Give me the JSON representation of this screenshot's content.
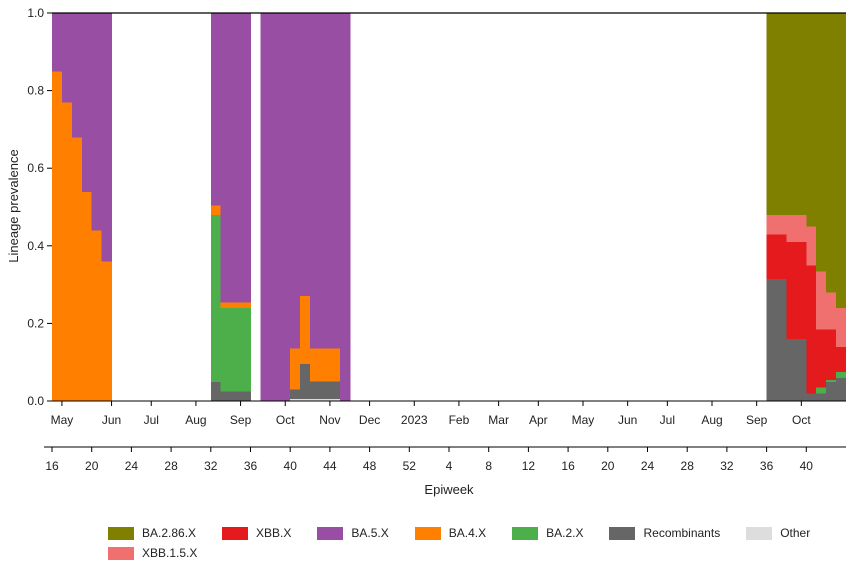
{
  "chart_data": {
    "type": "area",
    "title": "",
    "ylabel": "Lineage prevalence",
    "xlabel": "Epiweek",
    "ylim": [
      0,
      1
    ],
    "yticks": [
      "0.0",
      "0.2",
      "0.4",
      "0.6",
      "0.8",
      "1.0"
    ],
    "x_range_epiweek_index": [
      0,
      80
    ],
    "month_ticks": [
      {
        "label": "May",
        "x": 1
      },
      {
        "label": "Jun",
        "x": 6
      },
      {
        "label": "Jul",
        "x": 10
      },
      {
        "label": "Aug",
        "x": 14.5
      },
      {
        "label": "Sep",
        "x": 19
      },
      {
        "label": "Oct",
        "x": 23.5
      },
      {
        "label": "Nov",
        "x": 28
      },
      {
        "label": "Dec",
        "x": 32
      },
      {
        "label": "2023",
        "x": 36.5
      },
      {
        "label": "Feb",
        "x": 41
      },
      {
        "label": "Mar",
        "x": 45
      },
      {
        "label": "Apr",
        "x": 49
      },
      {
        "label": "May",
        "x": 53.5
      },
      {
        "label": "Jun",
        "x": 58
      },
      {
        "label": "Jul",
        "x": 62
      },
      {
        "label": "Aug",
        "x": 66.5
      },
      {
        "label": "Sep",
        "x": 71
      },
      {
        "label": "Oct",
        "x": 75.5
      }
    ],
    "epiweek_ticks": [
      {
        "label": "16",
        "x": 0
      },
      {
        "label": "20",
        "x": 4
      },
      {
        "label": "24",
        "x": 8
      },
      {
        "label": "28",
        "x": 12
      },
      {
        "label": "32",
        "x": 16
      },
      {
        "label": "36",
        "x": 20
      },
      {
        "label": "40",
        "x": 24
      },
      {
        "label": "44",
        "x": 28
      },
      {
        "label": "48",
        "x": 32
      },
      {
        "label": "52",
        "x": 36
      },
      {
        "label": "4",
        "x": 40
      },
      {
        "label": "8",
        "x": 44
      },
      {
        "label": "12",
        "x": 48
      },
      {
        "label": "16",
        "x": 52
      },
      {
        "label": "20",
        "x": 56
      },
      {
        "label": "24",
        "x": 60
      },
      {
        "label": "28",
        "x": 64
      },
      {
        "label": "32",
        "x": 68
      },
      {
        "label": "36",
        "x": 72
      },
      {
        "label": "40",
        "x": 76
      }
    ],
    "segments": [
      {
        "x_start": 0,
        "x_end": 6,
        "series": {
          "BA.4.X": [
            0.85,
            0.77,
            0.68,
            0.54,
            0.44,
            0.36
          ],
          "BA.5.X": [
            0.15,
            0.23,
            0.32,
            0.46,
            0.56,
            0.64
          ]
        }
      },
      {
        "x_start": 16,
        "x_end": 20,
        "series": {
          "Recombinants": [
            0.05,
            0.025,
            0.025,
            0.025
          ],
          "BA.2.X": [
            0.43,
            0.215,
            0.215,
            0.215
          ],
          "BA.4.X": [
            0.025,
            0.015,
            0.015,
            0.015
          ],
          "BA.5.X": [
            0.495,
            0.745,
            0.745,
            0.745
          ]
        }
      },
      {
        "x_start": 21,
        "x_end": 30,
        "series": {
          "Other": [
            0,
            0,
            0,
            0.006,
            0.006,
            0.006,
            0.006,
            0.006,
            0
          ],
          "Recombinants": [
            0,
            0,
            0,
            0.025,
            0.09,
            0.045,
            0.045,
            0.045,
            0
          ],
          "BA.4.X": [
            0,
            0,
            0,
            0.105,
            0.175,
            0.085,
            0.085,
            0.085,
            0
          ],
          "BA.5.X": [
            1,
            1,
            1,
            0.864,
            0.729,
            0.864,
            0.864,
            0.864,
            1
          ]
        }
      },
      {
        "x_start": 72,
        "x_end": 80,
        "series": {
          "Recombinants": [
            0.315,
            0.315,
            0.16,
            0.16,
            0.02,
            0.02,
            0.05,
            0.06
          ],
          "BA.2.X": [
            0,
            0,
            0,
            0,
            0,
            0.015,
            0.005,
            0.015
          ],
          "XBB.X": [
            0.115,
            0.115,
            0.25,
            0.25,
            0.33,
            0.15,
            0.13,
            0.065
          ],
          "XBB.1.5.X": [
            0.05,
            0.05,
            0.07,
            0.07,
            0.1,
            0.15,
            0.095,
            0.1
          ],
          "BA.2.86.X": [
            0.52,
            0.52,
            0.52,
            0.52,
            0.55,
            0.665,
            0.72,
            0.76
          ]
        }
      }
    ],
    "legend": [
      {
        "name": "BA.2.86.X",
        "color": "#808000"
      },
      {
        "name": "XBB.X",
        "color": "#e41a1c"
      },
      {
        "name": "BA.5.X",
        "color": "#984ea3"
      },
      {
        "name": "BA.4.X",
        "color": "#ff7f00"
      },
      {
        "name": "BA.2.X",
        "color": "#4daf4a"
      },
      {
        "name": "Recombinants",
        "color": "#666666"
      },
      {
        "name": "Other",
        "color": "#dddddd"
      },
      {
        "name": "XBB.1.5.X",
        "color": "#f07070"
      }
    ],
    "stack_order": [
      "Other",
      "Recombinants",
      "BA.2.X",
      "XBB.X",
      "XBB.1.5.X",
      "BA.4.X",
      "BA.5.X",
      "BA.2.86.X"
    ]
  }
}
